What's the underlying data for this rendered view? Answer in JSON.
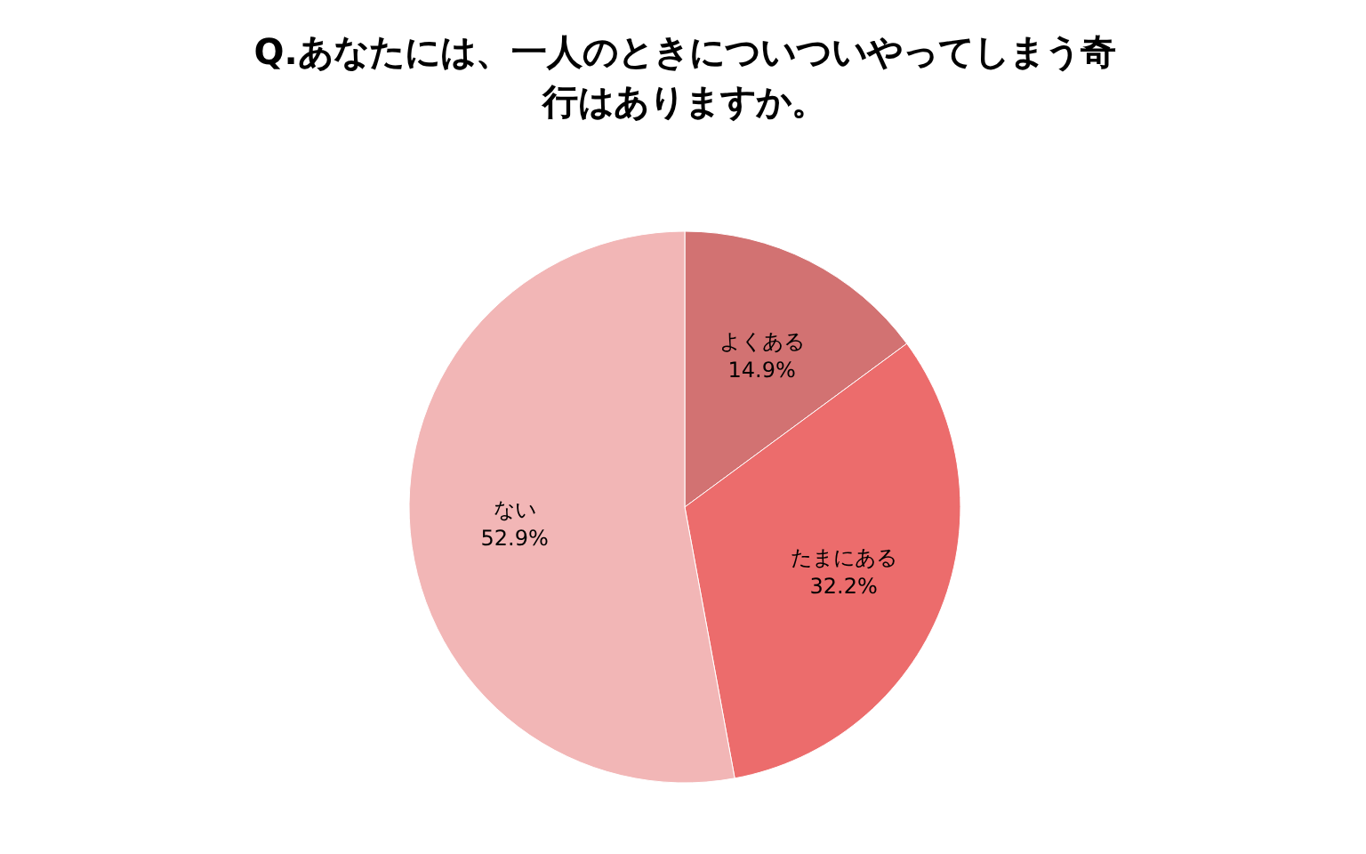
{
  "chart_data": {
    "type": "pie",
    "title": "Q.あなたには、一人のときについついやってしまう奇行はありますか。",
    "categories": [
      "よくある",
      "たまにある",
      "ない"
    ],
    "values": [
      14.9,
      32.2,
      52.9
    ],
    "colors": [
      "#d27272",
      "#ec6c6c",
      "#f2b6b6"
    ],
    "value_labels": [
      "14.9%",
      "32.2%",
      "52.9%"
    ]
  }
}
